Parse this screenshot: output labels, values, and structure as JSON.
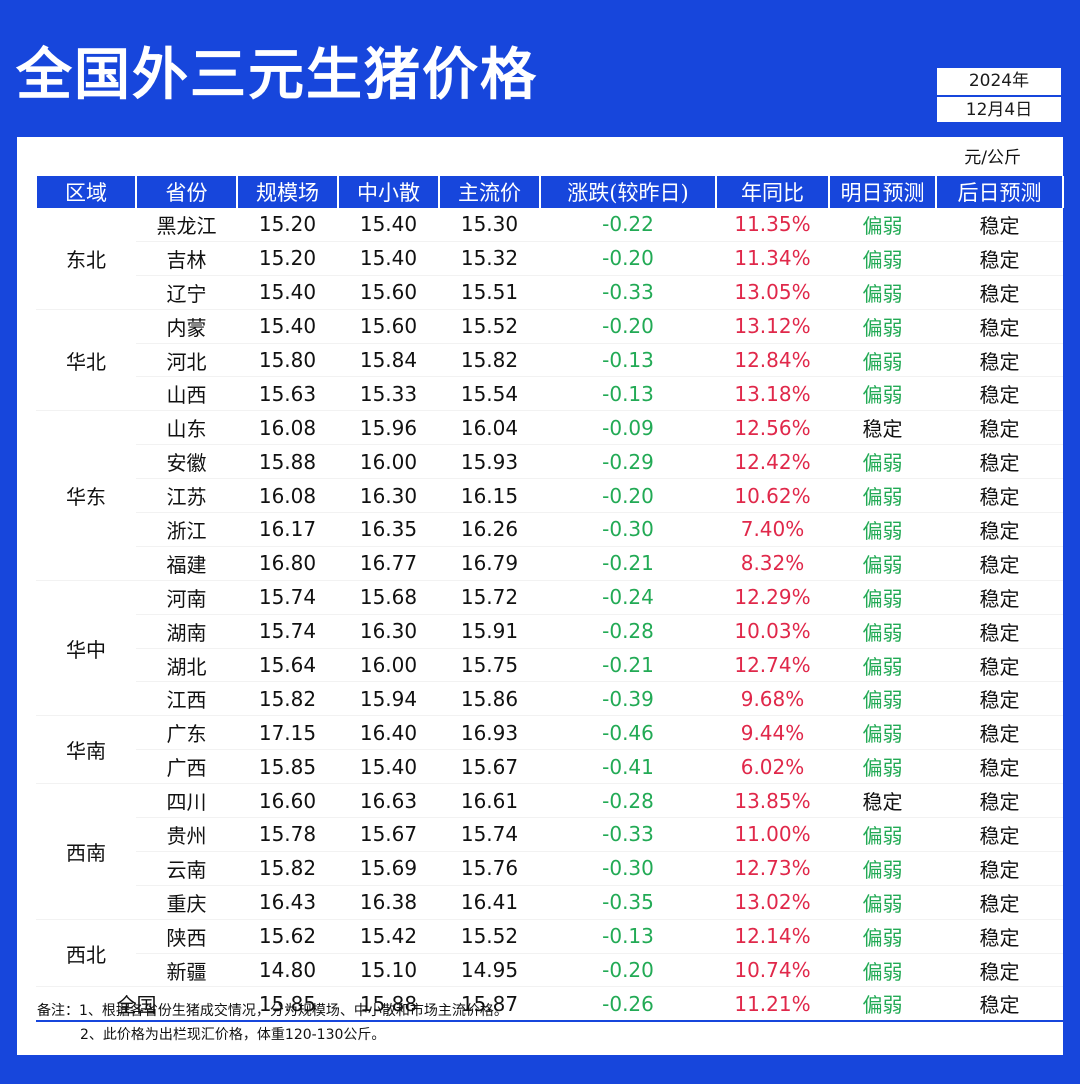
{
  "title": "全国外三元生猪价格",
  "date": {
    "year": "2024年",
    "day": "12月4日"
  },
  "unit": "元/公斤",
  "headers": [
    "区域",
    "省份",
    "规模场",
    "中小散",
    "主流价",
    "涨跌(较昨日)",
    "年同比",
    "明日预测",
    "后日预测"
  ],
  "regions": [
    {
      "name": "东北",
      "start": 0,
      "span": 3
    },
    {
      "name": "华北",
      "start": 3,
      "span": 3
    },
    {
      "name": "华东",
      "start": 6,
      "span": 5
    },
    {
      "name": "华中",
      "start": 11,
      "span": 4
    },
    {
      "name": "华南",
      "start": 15,
      "span": 2
    },
    {
      "name": "西南",
      "start": 17,
      "span": 4
    },
    {
      "name": "西北",
      "start": 21,
      "span": 2
    }
  ],
  "rows": [
    {
      "province": "黑龙江",
      "large": "15.20",
      "small": "15.40",
      "main": "15.30",
      "change": "-0.22",
      "yoy": "11.35%",
      "tomorrow": "偏弱",
      "after": "稳定"
    },
    {
      "province": "吉林",
      "large": "15.20",
      "small": "15.40",
      "main": "15.32",
      "change": "-0.20",
      "yoy": "11.34%",
      "tomorrow": "偏弱",
      "after": "稳定"
    },
    {
      "province": "辽宁",
      "large": "15.40",
      "small": "15.60",
      "main": "15.51",
      "change": "-0.33",
      "yoy": "13.05%",
      "tomorrow": "偏弱",
      "after": "稳定"
    },
    {
      "province": "内蒙",
      "large": "15.40",
      "small": "15.60",
      "main": "15.52",
      "change": "-0.20",
      "yoy": "13.12%",
      "tomorrow": "偏弱",
      "after": "稳定"
    },
    {
      "province": "河北",
      "large": "15.80",
      "small": "15.84",
      "main": "15.82",
      "change": "-0.13",
      "yoy": "12.84%",
      "tomorrow": "偏弱",
      "after": "稳定"
    },
    {
      "province": "山西",
      "large": "15.63",
      "small": "15.33",
      "main": "15.54",
      "change": "-0.13",
      "yoy": "13.18%",
      "tomorrow": "偏弱",
      "after": "稳定"
    },
    {
      "province": "山东",
      "large": "16.08",
      "small": "15.96",
      "main": "16.04",
      "change": "-0.09",
      "yoy": "12.56%",
      "tomorrow": "稳定",
      "after": "稳定"
    },
    {
      "province": "安徽",
      "large": "15.88",
      "small": "16.00",
      "main": "15.93",
      "change": "-0.29",
      "yoy": "12.42%",
      "tomorrow": "偏弱",
      "after": "稳定"
    },
    {
      "province": "江苏",
      "large": "16.08",
      "small": "16.30",
      "main": "16.15",
      "change": "-0.20",
      "yoy": "10.62%",
      "tomorrow": "偏弱",
      "after": "稳定"
    },
    {
      "province": "浙江",
      "large": "16.17",
      "small": "16.35",
      "main": "16.26",
      "change": "-0.30",
      "yoy": "7.40%",
      "tomorrow": "偏弱",
      "after": "稳定"
    },
    {
      "province": "福建",
      "large": "16.80",
      "small": "16.77",
      "main": "16.79",
      "change": "-0.21",
      "yoy": "8.32%",
      "tomorrow": "偏弱",
      "after": "稳定"
    },
    {
      "province": "河南",
      "large": "15.74",
      "small": "15.68",
      "main": "15.72",
      "change": "-0.24",
      "yoy": "12.29%",
      "tomorrow": "偏弱",
      "after": "稳定"
    },
    {
      "province": "湖南",
      "large": "15.74",
      "small": "16.30",
      "main": "15.91",
      "change": "-0.28",
      "yoy": "10.03%",
      "tomorrow": "偏弱",
      "after": "稳定"
    },
    {
      "province": "湖北",
      "large": "15.64",
      "small": "16.00",
      "main": "15.75",
      "change": "-0.21",
      "yoy": "12.74%",
      "tomorrow": "偏弱",
      "after": "稳定"
    },
    {
      "province": "江西",
      "large": "15.82",
      "small": "15.94",
      "main": "15.86",
      "change": "-0.39",
      "yoy": "9.68%",
      "tomorrow": "偏弱",
      "after": "稳定"
    },
    {
      "province": "广东",
      "large": "17.15",
      "small": "16.40",
      "main": "16.93",
      "change": "-0.46",
      "yoy": "9.44%",
      "tomorrow": "偏弱",
      "after": "稳定"
    },
    {
      "province": "广西",
      "large": "15.85",
      "small": "15.40",
      "main": "15.67",
      "change": "-0.41",
      "yoy": "6.02%",
      "tomorrow": "偏弱",
      "after": "稳定"
    },
    {
      "province": "四川",
      "large": "16.60",
      "small": "16.63",
      "main": "16.61",
      "change": "-0.28",
      "yoy": "13.85%",
      "tomorrow": "稳定",
      "after": "稳定"
    },
    {
      "province": "贵州",
      "large": "15.78",
      "small": "15.67",
      "main": "15.74",
      "change": "-0.33",
      "yoy": "11.00%",
      "tomorrow": "偏弱",
      "after": "稳定"
    },
    {
      "province": "云南",
      "large": "15.82",
      "small": "15.69",
      "main": "15.76",
      "change": "-0.30",
      "yoy": "12.73%",
      "tomorrow": "偏弱",
      "after": "稳定"
    },
    {
      "province": "重庆",
      "large": "16.43",
      "small": "16.38",
      "main": "16.41",
      "change": "-0.35",
      "yoy": "13.02%",
      "tomorrow": "偏弱",
      "after": "稳定"
    },
    {
      "province": "陕西",
      "large": "15.62",
      "small": "15.42",
      "main": "15.52",
      "change": "-0.13",
      "yoy": "12.14%",
      "tomorrow": "偏弱",
      "after": "稳定"
    },
    {
      "province": "新疆",
      "large": "14.80",
      "small": "15.10",
      "main": "14.95",
      "change": "-0.20",
      "yoy": "10.74%",
      "tomorrow": "偏弱",
      "after": "稳定"
    }
  ],
  "national": {
    "label": "全国",
    "large": "15.85",
    "small": "15.88",
    "main": "15.87",
    "change": "-0.26",
    "yoy": "11.21%",
    "tomorrow": "偏弱",
    "after": "稳定"
  },
  "notes": [
    "备注：1、根据各省份生猪成交情况，分为规模场、中小散和市场主流价格。",
    "2、此价格为出栏现汇价格，体重120-130公斤。"
  ],
  "colors": {
    "brand": "#1746dc",
    "down": "#22aa55",
    "up": "#e0284a"
  }
}
